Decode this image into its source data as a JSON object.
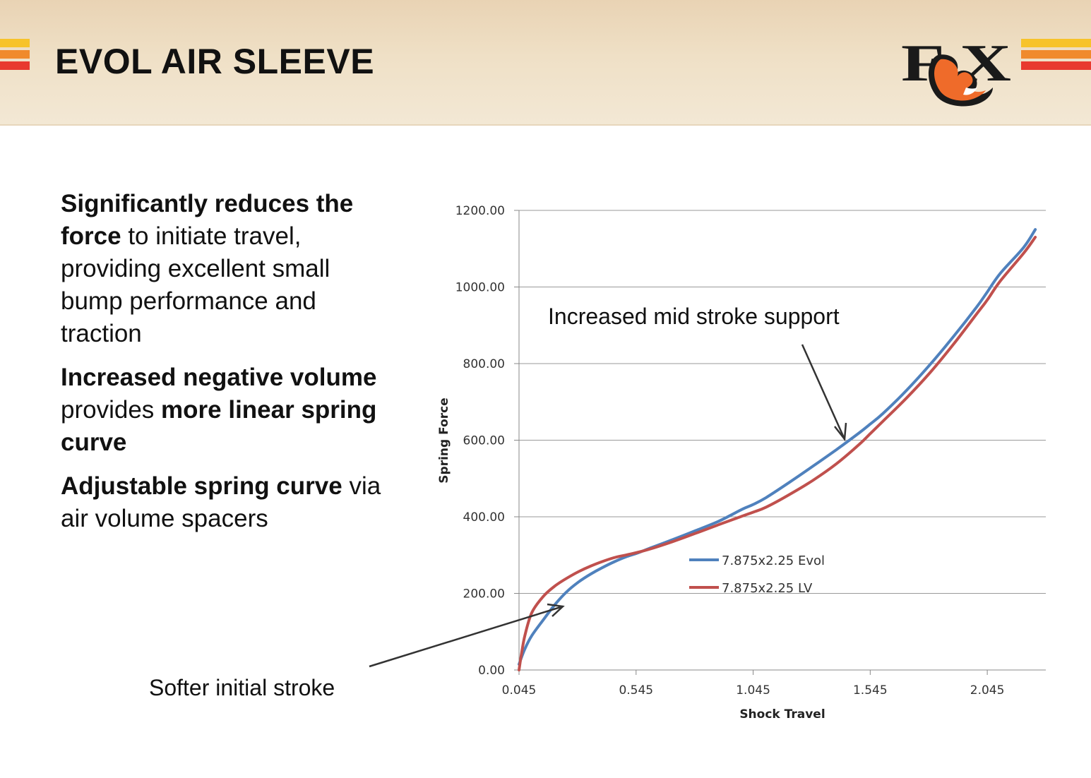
{
  "slide": {
    "title": "EVOL AIR SLEEVE",
    "logo_text": "FOX",
    "stripe_colors": [
      "#f7c32a",
      "#f08a2c",
      "#e83a2f"
    ]
  },
  "bullets": [
    {
      "segments": [
        {
          "text": "Significantly reduces the force",
          "bold": true
        },
        {
          "text": " to initiate travel, providing excellent small bump performance and traction",
          "bold": false
        }
      ]
    },
    {
      "segments": [
        {
          "text": "Increased negative volume",
          "bold": true
        },
        {
          "text": " provides ",
          "bold": false
        },
        {
          "text": "more linear spring curve",
          "bold": true
        }
      ]
    },
    {
      "segments": [
        {
          "text": "Adjustable spring curve",
          "bold": true
        },
        {
          "text": " via air volume spacers",
          "bold": false
        }
      ]
    }
  ],
  "annotations": {
    "mid": "Increased mid stroke support",
    "initial": "Softer initial stroke"
  },
  "chart_data": {
    "type": "line",
    "title": "",
    "xlabel": "Shock Travel",
    "ylabel": "Spring Force",
    "xlim": [
      0.045,
      2.295
    ],
    "ylim": [
      0,
      1200
    ],
    "x_ticks": [
      "0.045",
      "0.545",
      "1.045",
      "1.545",
      "2.045"
    ],
    "y_ticks": [
      "0.00",
      "200.00",
      "400.00",
      "600.00",
      "800.00",
      "1000.00",
      "1200.00"
    ],
    "grid": "horizontal",
    "legend_position": "center-right",
    "series": [
      {
        "name": "7.875x2.25 Evol",
        "color": "#4f81bd",
        "x": [
          0.045,
          0.07,
          0.1,
          0.15,
          0.2,
          0.25,
          0.3,
          0.35,
          0.4,
          0.45,
          0.5,
          0.55,
          0.6,
          0.7,
          0.8,
          0.9,
          1.0,
          1.045,
          1.1,
          1.2,
          1.3,
          1.4,
          1.5,
          1.545,
          1.6,
          1.7,
          1.8,
          1.9,
          2.0,
          2.045,
          2.1,
          2.2,
          2.25
        ],
        "values": [
          15,
          55,
          90,
          132,
          172,
          205,
          230,
          250,
          267,
          282,
          295,
          305,
          317,
          340,
          364,
          389,
          420,
          432,
          450,
          490,
          532,
          575,
          620,
          642,
          670,
          730,
          797,
          870,
          948,
          987,
          1035,
          1103,
          1150
        ]
      },
      {
        "name": "7.875x2.25 LV",
        "color": "#c0504d",
        "x": [
          0.045,
          0.055,
          0.07,
          0.1,
          0.15,
          0.2,
          0.25,
          0.3,
          0.35,
          0.4,
          0.45,
          0.5,
          0.55,
          0.6,
          0.7,
          0.8,
          0.9,
          1.0,
          1.045,
          1.1,
          1.2,
          1.3,
          1.4,
          1.5,
          1.545,
          1.6,
          1.7,
          1.8,
          1.9,
          2.0,
          2.045,
          2.1,
          2.2,
          2.25
        ],
        "values": [
          0,
          40,
          90,
          150,
          193,
          220,
          240,
          257,
          271,
          283,
          293,
          300,
          307,
          315,
          335,
          357,
          380,
          402,
          412,
          425,
          458,
          495,
          538,
          590,
          617,
          650,
          710,
          776,
          850,
          930,
          966,
          1015,
          1088,
          1130
        ]
      }
    ]
  }
}
